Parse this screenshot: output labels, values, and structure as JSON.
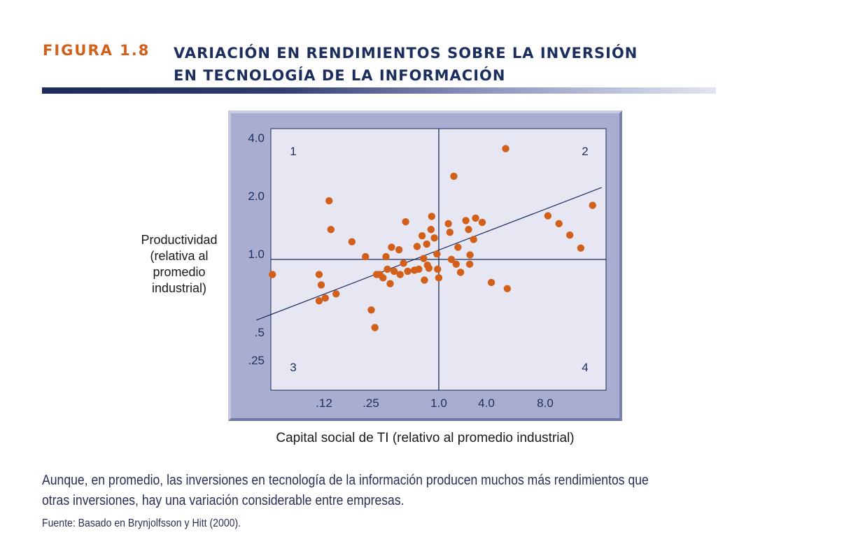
{
  "figure": {
    "label": "FIGURA 1.8",
    "title_line1": "VARIACIÓN EN RENDIMIENTOS SOBRE LA INVERSIÓN",
    "title_line2": "EN TECNOLOGÍA DE LA INFORMACIÓN"
  },
  "caption": "Aunque, en promedio, las inversiones en tecnología de la información producen muchos más rendimientos que otras inversiones, hay una variación considerable entre empresas.",
  "source": "Fuente: Basado en Brynjolfsson y Hitt (2000).",
  "colors": {
    "title": "#1c2e5e",
    "label": "#d2601a",
    "point": "#d2601a",
    "plot_bg": "#e6e7f3",
    "frame": "#a9aed0",
    "lines": "#1c2b5a"
  },
  "chart_data": {
    "type": "scatter",
    "xlabel": "Capital social de TI (relativo al promedio industrial)",
    "ylabel": "Productividad (relativa al promedio industrial)",
    "x_scale": "log",
    "y_scale": "log",
    "x_ticks": [
      ".12",
      ".25",
      "1.0",
      "4.0",
      "8.0"
    ],
    "y_ticks": [
      "4.0",
      "2.0",
      "1.0",
      ".5",
      ".25"
    ],
    "quadrant_labels": [
      "1",
      "2",
      "3",
      "4"
    ],
    "reference_lines": {
      "x": 1.0,
      "y": 1.0
    },
    "trend_line": {
      "start": [
        0.05,
        0.52
      ],
      "end": [
        14.5,
        2.17
      ]
    },
    "points": [
      [
        0.065,
        0.85
      ],
      [
        0.14,
        0.85
      ],
      [
        0.145,
        0.76
      ],
      [
        0.14,
        0.64
      ],
      [
        0.155,
        0.66
      ],
      [
        0.185,
        0.69
      ],
      [
        0.165,
        1.88
      ],
      [
        0.17,
        1.38
      ],
      [
        0.24,
        1.21
      ],
      [
        0.3,
        1.03
      ],
      [
        0.33,
        0.58
      ],
      [
        0.35,
        0.48
      ],
      [
        0.36,
        0.85
      ],
      [
        0.38,
        0.85
      ],
      [
        0.4,
        0.82
      ],
      [
        0.42,
        1.03
      ],
      [
        0.43,
        0.9
      ],
      [
        0.45,
        0.77
      ],
      [
        0.46,
        1.14
      ],
      [
        0.48,
        0.88
      ],
      [
        0.52,
        1.11
      ],
      [
        0.53,
        0.85
      ],
      [
        0.56,
        0.96
      ],
      [
        0.58,
        1.5
      ],
      [
        0.6,
        0.88
      ],
      [
        0.67,
        0.89
      ],
      [
        0.7,
        1.15
      ],
      [
        0.72,
        0.9
      ],
      [
        0.76,
        1.29
      ],
      [
        0.78,
        1.01
      ],
      [
        0.79,
        0.8
      ],
      [
        0.82,
        1.18
      ],
      [
        0.83,
        0.94
      ],
      [
        0.85,
        0.91
      ],
      [
        0.88,
        1.38
      ],
      [
        0.89,
        1.59
      ],
      [
        0.93,
        1.26
      ],
      [
        0.97,
        1.06
      ],
      [
        0.98,
        0.9
      ],
      [
        1.0,
        0.82
      ],
      [
        1.17,
        1.47
      ],
      [
        1.2,
        1.34
      ],
      [
        1.23,
        1.0
      ],
      [
        1.28,
        2.45
      ],
      [
        1.33,
        0.95
      ],
      [
        1.37,
        1.14
      ],
      [
        1.43,
        0.87
      ],
      [
        1.56,
        1.52
      ],
      [
        1.63,
        1.38
      ],
      [
        1.67,
        1.05
      ],
      [
        1.66,
        0.95
      ],
      [
        1.77,
        1.24
      ],
      [
        1.83,
        1.56
      ],
      [
        2.04,
        1.49
      ],
      [
        2.37,
        0.78
      ],
      [
        3.0,
        3.3
      ],
      [
        3.08,
        0.73
      ],
      [
        6.0,
        1.6
      ],
      [
        7.2,
        1.47
      ],
      [
        8.6,
        1.3
      ],
      [
        10.3,
        1.13
      ],
      [
        12.5,
        1.79
      ]
    ]
  }
}
